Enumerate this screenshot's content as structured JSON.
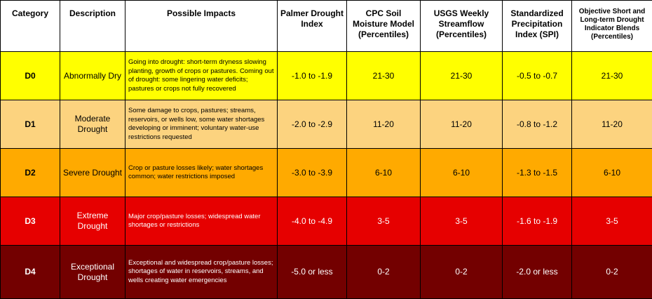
{
  "headers": [
    "Category",
    "Description",
    "Possible Impacts",
    "Palmer Drought Index",
    "CPC Soil Moisture Model (Percentiles)",
    "USGS Weekly Streamflow (Percentiles)",
    "Standardized Precipitation Index (SPI)",
    "Objective Short and Long-term Drought Indicator Blends (Percentiles)"
  ],
  "rows": [
    {
      "category": "D0",
      "description": "Abnormally Dry",
      "impacts": "Going into drought: short-term dryness slowing planting, growth of crops or pastures. Coming out of drought: some lingering water deficits;  pastures or crops not fully recovered",
      "palmer": "-1.0 to -1.9",
      "cpc": "21-30",
      "usgs": "21-30",
      "spi": "-0.5 to -0.7",
      "blends": "21-30",
      "bg": "#ffff00",
      "fg": "#000000"
    },
    {
      "category": "D1",
      "description": "Moderate Drought",
      "impacts": "Some damage to crops, pastures; streams, reservoirs, or wells low, some water shortages developing or imminent; voluntary water-use restrictions requested",
      "palmer": "-2.0 to -2.9",
      "cpc": "11-20",
      "usgs": "11-20",
      "spi": "-0.8 to -1.2",
      "blends": "11-20",
      "bg": "#fcd37f",
      "fg": "#000000"
    },
    {
      "category": "D2",
      "description": "Severe Drought",
      "impacts": "Crop or pasture losses likely;  water shortages common; water restrictions imposed",
      "palmer": "-3.0 to -3.9",
      "cpc": "6-10",
      "usgs": "6-10",
      "spi": "-1.3 to -1.5",
      "blends": "6-10",
      "bg": "#ffaa00",
      "fg": "#000000"
    },
    {
      "category": "D3",
      "description": "Extreme Drought",
      "impacts": "Major crop/pasture losses;  widespread water shortages or restrictions",
      "palmer": "-4.0 to -4.9",
      "cpc": "3-5",
      "usgs": "3-5",
      "spi": "-1.6 to -1.9",
      "blends": "3-5",
      "bg": "#e60000",
      "fg": "#ffffff"
    },
    {
      "category": "D4",
      "description": "Exceptional Drought",
      "impacts": "Exceptional and widespread crop/pasture losses; shortages of water in reservoirs, streams, and wells creating water emergencies",
      "palmer": "-5.0 or less",
      "cpc": "0-2",
      "usgs": "0-2",
      "spi": "-2.0 or less",
      "blends": "0-2",
      "bg": "#730000",
      "fg": "#ffffff"
    }
  ]
}
